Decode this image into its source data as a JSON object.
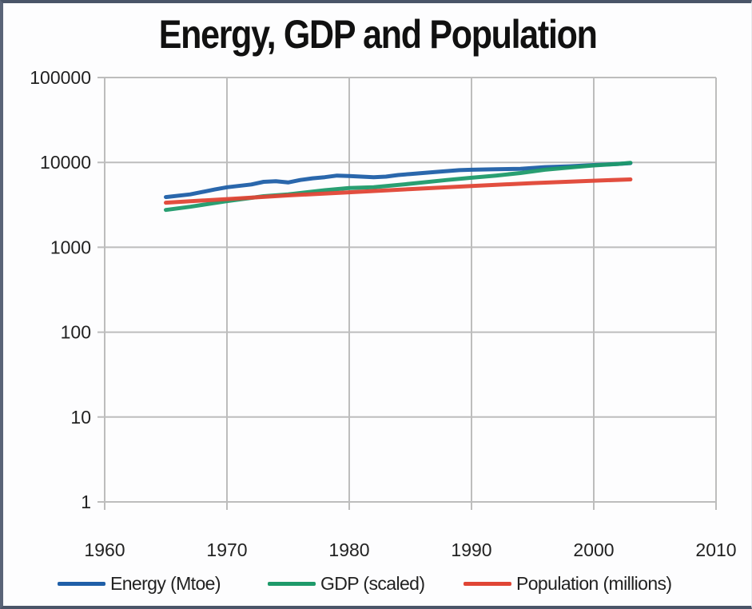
{
  "chart_data": {
    "type": "line",
    "title": "Energy, GDP and Population",
    "xlabel": "",
    "ylabel": "",
    "xlim": [
      1960,
      2010
    ],
    "ylim": [
      1,
      100000
    ],
    "yscale": "log",
    "grid": true,
    "legend_position": "bottom",
    "x_ticks": [
      "1960",
      "1970",
      "1980",
      "1990",
      "2000",
      "2010"
    ],
    "y_ticks": [
      "1",
      "10",
      "100",
      "1000",
      "10000",
      "100000"
    ],
    "series": [
      {
        "name": "Energy (Mtoe)",
        "color": "#1f5fa8",
        "points": [
          [
            1965,
            3900
          ],
          [
            1967,
            4200
          ],
          [
            1969,
            4800
          ],
          [
            1970,
            5100
          ],
          [
            1972,
            5500
          ],
          [
            1973,
            5900
          ],
          [
            1974,
            6000
          ],
          [
            1975,
            5800
          ],
          [
            1976,
            6200
          ],
          [
            1977,
            6500
          ],
          [
            1978,
            6700
          ],
          [
            1979,
            7000
          ],
          [
            1980,
            6900
          ],
          [
            1981,
            6800
          ],
          [
            1982,
            6700
          ],
          [
            1983,
            6800
          ],
          [
            1984,
            7100
          ],
          [
            1985,
            7300
          ],
          [
            1987,
            7700
          ],
          [
            1989,
            8100
          ],
          [
            1990,
            8200
          ],
          [
            1992,
            8300
          ],
          [
            1994,
            8400
          ],
          [
            1996,
            8800
          ],
          [
            1998,
            9000
          ],
          [
            2000,
            9300
          ],
          [
            2002,
            9600
          ],
          [
            2003,
            9800
          ]
        ]
      },
      {
        "name": "GDP (scaled)",
        "color": "#1e9a6a",
        "points": [
          [
            1965,
            2750
          ],
          [
            1967,
            3000
          ],
          [
            1970,
            3500
          ],
          [
            1973,
            4000
          ],
          [
            1975,
            4200
          ],
          [
            1978,
            4700
          ],
          [
            1980,
            5000
          ],
          [
            1982,
            5100
          ],
          [
            1985,
            5600
          ],
          [
            1988,
            6200
          ],
          [
            1990,
            6600
          ],
          [
            1992,
            7000
          ],
          [
            1994,
            7500
          ],
          [
            1996,
            8200
          ],
          [
            1998,
            8700
          ],
          [
            2000,
            9200
          ],
          [
            2002,
            9600
          ],
          [
            2003,
            9900
          ]
        ]
      },
      {
        "name": "Population (millions)",
        "color": "#e04535",
        "points": [
          [
            1965,
            3350
          ],
          [
            1970,
            3700
          ],
          [
            1975,
            4080
          ],
          [
            1980,
            4440
          ],
          [
            1985,
            4850
          ],
          [
            1990,
            5280
          ],
          [
            1995,
            5700
          ],
          [
            2000,
            6080
          ],
          [
            2003,
            6300
          ]
        ]
      }
    ]
  }
}
